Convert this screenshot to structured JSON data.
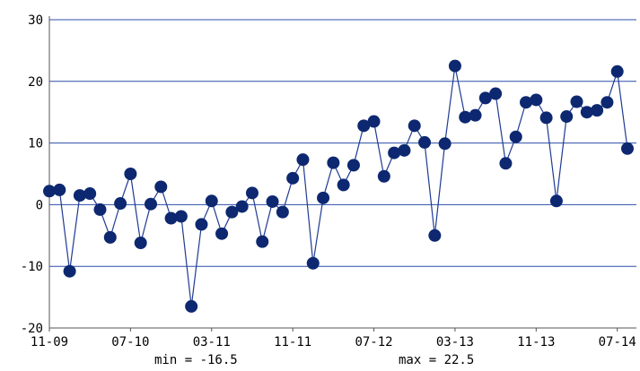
{
  "chart_data": {
    "type": "line",
    "title": "",
    "xlabel": "",
    "ylabel": "",
    "ylim": [
      -20,
      30
    ],
    "yticks": [
      "-20",
      "-10",
      "0",
      "10",
      "20",
      "30"
    ],
    "xticks": [
      "11-09",
      "07-10",
      "03-11",
      "11-11",
      "07-12",
      "03-13",
      "11-13",
      "07-14"
    ],
    "grid": "horizontal",
    "colors": {
      "line": "#1f3a93",
      "marker": "#0d2870",
      "grid": "#2b4ea8",
      "axis": "#555555"
    },
    "series": [
      {
        "values": [
          2.2,
          2.4,
          -10.8,
          1.5,
          1.8,
          -0.8,
          -5.3,
          0.2,
          5.0,
          -6.2,
          0.1,
          2.9,
          -2.2,
          -1.9,
          -16.5,
          -3.2,
          0.6,
          -4.7,
          -1.2,
          -0.3,
          1.9,
          -6.0,
          0.5,
          -1.2,
          4.3,
          7.3,
          -9.5,
          1.1,
          6.8,
          3.2,
          6.4,
          12.8,
          13.5,
          4.6,
          8.4,
          8.8,
          12.8,
          10.1,
          -5.0,
          9.9,
          22.5,
          14.2,
          14.5,
          17.3,
          18.0,
          6.7,
          11.0,
          16.6,
          17.0,
          14.1,
          0.6,
          14.3,
          16.7,
          15.0,
          15.3,
          16.6,
          21.6,
          9.1
        ]
      }
    ]
  },
  "stats": {
    "min_label": "min = -16.5",
    "max_label": "max = 22.5"
  }
}
